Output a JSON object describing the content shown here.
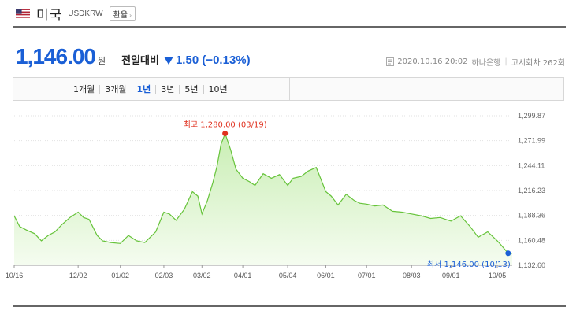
{
  "header": {
    "country": "미국",
    "code": "USDKRW",
    "exchange_button": "환율",
    "flag_icon": "us-flag-icon"
  },
  "quote": {
    "price": "1,146.00",
    "unit": "원",
    "change_label": "전일대비",
    "change": "1.50 (−0.13%)",
    "direction": "down",
    "color": "#1a5fd6"
  },
  "meta": {
    "timestamp": "2020.10.16 20:02",
    "bank": "하나은행",
    "notice": "고시회차 262회"
  },
  "tabs": [
    {
      "label": "1개월"
    },
    {
      "label": "3개월"
    },
    {
      "label": "1년",
      "selected": true
    },
    {
      "label": "3년"
    },
    {
      "label": "5년"
    },
    {
      "label": "10년"
    }
  ],
  "chart_data": {
    "type": "area",
    "y_ticks": [
      "1,299.87",
      "1,271.99",
      "1,244.11",
      "1,216.23",
      "1,188.36",
      "1,160.48",
      "1,132.60"
    ],
    "ylim": [
      1132.6,
      1299.87
    ],
    "x_tick_labels": [
      "10/16",
      "12/02",
      "01/02",
      "02/03",
      "03/02",
      "04/01",
      "05/04",
      "06/01",
      "07/01",
      "08/03",
      "09/01",
      "10/05"
    ],
    "x_ticks_dates": [
      "2019-10-16",
      "2019-12-02",
      "2020-01-02",
      "2020-02-03",
      "2020-03-02",
      "2020-04-01",
      "2020-05-04",
      "2020-06-01",
      "2020-07-01",
      "2020-08-03",
      "2020-09-01",
      "2020-10-05"
    ],
    "xlim_dates": [
      "2019-10-16",
      "2020-10-16"
    ],
    "series": [
      {
        "x": [
          "2019-10-16",
          "2019-10-20",
          "2019-10-25",
          "2019-10-31",
          "2019-11-05",
          "2019-11-10",
          "2019-11-15",
          "2019-11-20",
          "2019-11-26",
          "2019-12-02",
          "2019-12-06",
          "2019-12-10",
          "2019-12-16",
          "2019-12-20",
          "2019-12-26",
          "2020-01-02",
          "2020-01-08",
          "2020-01-14",
          "2020-01-20",
          "2020-01-28",
          "2020-02-03",
          "2020-02-07",
          "2020-02-12",
          "2020-02-18",
          "2020-02-24",
          "2020-02-28",
          "2020-03-02",
          "2020-03-06",
          "2020-03-10",
          "2020-03-13",
          "2020-03-16",
          "2020-03-19",
          "2020-03-23",
          "2020-03-27",
          "2020-04-01",
          "2020-04-06",
          "2020-04-10",
          "2020-04-16",
          "2020-04-22",
          "2020-04-28",
          "2020-05-04",
          "2020-05-08",
          "2020-05-14",
          "2020-05-19",
          "2020-05-25",
          "2020-06-01",
          "2020-06-05",
          "2020-06-10",
          "2020-06-16",
          "2020-06-22",
          "2020-06-26",
          "2020-07-01",
          "2020-07-07",
          "2020-07-13",
          "2020-07-20",
          "2020-07-27",
          "2020-08-03",
          "2020-08-10",
          "2020-08-17",
          "2020-08-24",
          "2020-09-01",
          "2020-09-08",
          "2020-09-15",
          "2020-09-21",
          "2020-09-28",
          "2020-10-05",
          "2020-10-08",
          "2020-10-13",
          "2020-10-16"
        ],
        "y": [
          1188,
          1176,
          1172,
          1168,
          1160,
          1166,
          1170,
          1178,
          1186,
          1192,
          1186,
          1184,
          1166,
          1160,
          1158,
          1157,
          1166,
          1160,
          1158,
          1170,
          1192,
          1190,
          1183,
          1195,
          1215,
          1210,
          1190,
          1205,
          1225,
          1243,
          1268,
          1280,
          1262,
          1240,
          1230,
          1226,
          1222,
          1235,
          1230,
          1234,
          1222,
          1230,
          1232,
          1238,
          1242,
          1215,
          1210,
          1200,
          1212,
          1205,
          1202,
          1201,
          1199,
          1200,
          1193,
          1192,
          1190,
          1188,
          1185,
          1186,
          1182,
          1188,
          1176,
          1164,
          1170,
          1160,
          1155,
          1146,
          1146
        ]
      }
    ],
    "max_label": "최고 1,280.00 (03/19)",
    "min_label": "최저 1,146.00 (10/13)",
    "max_point": {
      "x": "2020-03-19",
      "y": 1280.0
    },
    "min_point": {
      "x": "2020-10-13",
      "y": 1146.0
    },
    "colors": {
      "line": "#66c33a",
      "fill_top": "#c9eeb4",
      "fill_bottom": "#f5fcf0",
      "max": "#e0311f",
      "min": "#1a5fd6"
    },
    "grid": "horizontal dotted"
  }
}
